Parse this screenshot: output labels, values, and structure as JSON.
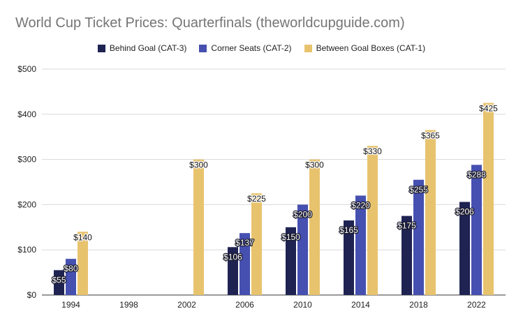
{
  "chart_data": {
    "type": "bar",
    "title": "World Cup Ticket Prices: Quarterfinals (theworldcupguide.com)",
    "categories": [
      "1994",
      "1998",
      "2002",
      "2006",
      "2010",
      "2014",
      "2018",
      "2022"
    ],
    "series": [
      {
        "name": "Behind Goal (CAT-3)",
        "color": "#1f2352",
        "values": [
          55,
          null,
          null,
          106,
          150,
          165,
          175,
          206
        ]
      },
      {
        "name": "Corner Seats (CAT-2)",
        "color": "#4650b0",
        "values": [
          80,
          null,
          null,
          137,
          200,
          220,
          255,
          288
        ]
      },
      {
        "name": "Between Goal Boxes (CAT-1)",
        "color": "#e8c36e",
        "values": [
          140,
          null,
          300,
          225,
          300,
          330,
          365,
          425
        ]
      }
    ],
    "data_labels": [
      [
        "$55",
        null,
        null,
        "$106",
        "$150",
        "$165",
        "$175",
        "$206"
      ],
      [
        "$80",
        null,
        null,
        "$137",
        "$200",
        "$220",
        "$255",
        "$288"
      ],
      [
        "$140",
        null,
        "$300",
        "$225",
        "$300",
        "$330",
        "$365",
        "$425"
      ]
    ],
    "y_ticks": [
      0,
      100,
      200,
      300,
      400,
      500
    ],
    "y_tick_labels": [
      "$0",
      "$100",
      "$200",
      "$300",
      "$400",
      "$500"
    ],
    "ylim": [
      0,
      500
    ],
    "xlabel": "",
    "ylabel": "",
    "grid": true,
    "legend_position": "top"
  }
}
